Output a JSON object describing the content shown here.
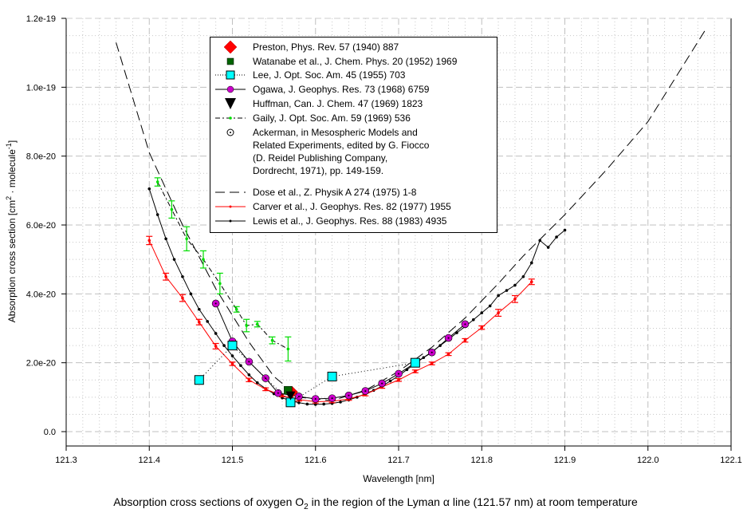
{
  "chart_data": {
    "type": "line",
    "caption": {
      "prefix": "Absorption cross sections of oxygen O",
      "subscript": "2",
      "middle": " in the region of the Lyman ",
      "greek": "α",
      "suffix": " line (121.57 nm) at room temperature"
    },
    "xlabel": "Wavelength [nm]",
    "ylabel": {
      "prefix": "Absorption cross section [cm",
      "sup1": "2",
      "middle": " · molecule",
      "sup2": "-1",
      "suffix": "]"
    },
    "xlim": [
      121.3,
      122.1
    ],
    "ylim": [
      -4e-21,
      1.2e-19
    ],
    "x_ticks": [
      "121.3",
      "121.4",
      "121.5",
      "121.6",
      "121.7",
      "121.8",
      "121.9",
      "122.0",
      "122.1"
    ],
    "y_ticks": [
      "0.0",
      "2.0e-20",
      "4.0e-20",
      "6.0e-20",
      "8.0e-20",
      "1.0e-19",
      "1.2e-19"
    ],
    "y_tick_values": [
      0,
      2e-20,
      4e-20,
      6e-20,
      8e-20,
      1e-19,
      1.2e-19
    ],
    "grid": true,
    "legend_placement": "top-center",
    "series": [
      {
        "name": "Preston, Phys. Rev. 57 (1940) 887",
        "style": "marker",
        "marker": "diamond",
        "color": "#ff0000",
        "x": [
          121.572
        ],
        "y": [
          1.15e-20
        ]
      },
      {
        "name": "Watanabe et al., J. Chem. Phys. 20 (1952) 1969",
        "style": "marker",
        "marker": "square",
        "color": "#006400",
        "x": [
          121.567
        ],
        "y": [
          1.2e-20
        ]
      },
      {
        "name": "Lee, J. Opt. Soc. Am. 45 (1955) 703",
        "style": "dotted",
        "marker": "square",
        "color": "#00ffff",
        "x": [
          121.46,
          121.5,
          121.57,
          121.62,
          121.72
        ],
        "y": [
          1.5e-20,
          2.5e-20,
          8.5e-21,
          1.6e-20,
          2e-20
        ]
      },
      {
        "name": "Ogawa, J. Geophys. Res. 73 (1968) 6759",
        "style": "solid",
        "marker": "circle",
        "color": "#cc00cc",
        "x": [
          121.48,
          121.5,
          121.52,
          121.54,
          121.555,
          121.58,
          121.6,
          121.62,
          121.64,
          121.66,
          121.68,
          121.7,
          121.72,
          121.74,
          121.76,
          121.78
        ],
        "y": [
          3.72e-20,
          2.62e-20,
          2.03e-20,
          1.55e-20,
          1.12e-20,
          1.02e-20,
          9.5e-21,
          9.7e-21,
          1.05e-20,
          1.18e-20,
          1.4e-20,
          1.68e-20,
          2e-20,
          2.3e-20,
          2.72e-20,
          3.12e-20
        ]
      },
      {
        "name": "Huffman, Can. J. Chem. 47 (1969) 1823",
        "style": "marker",
        "marker": "triangle-down",
        "color": "#000000",
        "x": [
          121.57
        ],
        "y": [
          1.05e-20
        ]
      },
      {
        "name": "Gaily, J. Opt. Soc. Am. 59 (1969) 536",
        "style": "dash-dot",
        "marker": "dot-errorbar",
        "color": "#00dd00",
        "x": [
          121.41,
          121.427,
          121.445,
          121.465,
          121.485,
          121.505,
          121.517,
          121.53,
          121.548,
          121.567
        ],
        "y": [
          7.25e-20,
          6.45e-20,
          5.6e-20,
          5e-20,
          4.3e-20,
          3.55e-20,
          3.08e-20,
          3.12e-20,
          2.65e-20,
          2.4e-20
        ],
        "err": [
          1.2e-21,
          2.5e-21,
          3.5e-21,
          2.5e-21,
          3e-21,
          8e-22,
          1.8e-21,
          8e-22,
          1e-21,
          3.5e-21
        ]
      },
      {
        "name": "Ackerman, in Mesospheric Models and Related Experiments, edited by G. Fiocco (D. Reidel Publishing Company, Dordrecht, 1971), pp. 149-159.",
        "name_lines": [
          "Ackerman, in Mesospheric Models and",
          "Related Experiments, edited by G. Fiocco",
          "(D. Reidel Publishing Company,",
          "Dordrecht, 1971), pp. 149-159."
        ],
        "style": "marker",
        "marker": "circle-dot",
        "color": "#000000",
        "x": [
          121.57
        ],
        "y": [
          1.1e-20
        ]
      },
      {
        "name": "Dose et al., Z. Physik A 274 (1975) 1-8",
        "style": "dashed",
        "marker": "none",
        "color": "#000000",
        "x": [
          121.36,
          121.4,
          121.44,
          121.48,
          121.52,
          121.55,
          121.58,
          121.62,
          121.66,
          121.7,
          121.74,
          121.78,
          121.82,
          121.85,
          121.9,
          121.95,
          122.0,
          122.07
        ],
        "y": [
          1.13e-19,
          8.1e-20,
          6e-20,
          4.15e-20,
          2.6e-20,
          1.6e-20,
          1e-20,
          9e-21,
          1.2e-20,
          1.75e-20,
          2.45e-20,
          3.3e-20,
          4.3e-20,
          5.1e-20,
          6.3e-20,
          7.6e-20,
          9e-20,
          1.17e-19
        ]
      },
      {
        "name": "Carver et al., J. Geophys. Res. 82 (1977) 1955",
        "style": "solid",
        "marker": "dot-errorbar",
        "color": "#ff0000",
        "x": [
          121.4,
          121.42,
          121.44,
          121.46,
          121.48,
          121.5,
          121.52,
          121.54,
          121.56,
          121.58,
          121.6,
          121.62,
          121.64,
          121.66,
          121.68,
          121.7,
          121.72,
          121.74,
          121.76,
          121.78,
          121.8,
          121.82,
          121.84,
          121.86
        ],
        "y": [
          5.55e-20,
          4.5e-20,
          3.88e-20,
          3.18e-20,
          2.48e-20,
          1.97e-20,
          1.5e-20,
          1.23e-20,
          1.05e-20,
          9.3e-21,
          8.7e-21,
          8.8e-21,
          9.5e-21,
          1.08e-20,
          1.3e-20,
          1.5e-20,
          1.75e-20,
          1.98e-20,
          2.25e-20,
          2.65e-20,
          3.02e-20,
          3.45e-20,
          3.85e-20,
          4.35e-20
        ],
        "err": [
          1.2e-21,
          1e-21,
          1e-21,
          8e-22,
          8e-22,
          5e-22,
          5e-22,
          4e-22,
          4e-22,
          4e-22,
          4e-22,
          4e-22,
          4e-22,
          4e-22,
          4e-22,
          4e-22,
          4e-22,
          4e-22,
          4e-22,
          5e-22,
          5e-22,
          1e-21,
          1e-21,
          8e-22
        ]
      },
      {
        "name": "Lewis et al., J. Geophys. Res. 88 (1983) 4935",
        "style": "solid",
        "marker": "small-dot",
        "color": "#000000",
        "x": [
          121.4,
          121.41,
          121.42,
          121.43,
          121.44,
          121.45,
          121.46,
          121.47,
          121.48,
          121.49,
          121.5,
          121.51,
          121.52,
          121.53,
          121.54,
          121.55,
          121.56,
          121.57,
          121.58,
          121.59,
          121.6,
          121.61,
          121.62,
          121.63,
          121.64,
          121.65,
          121.66,
          121.67,
          121.68,
          121.69,
          121.7,
          121.71,
          121.72,
          121.73,
          121.74,
          121.75,
          121.76,
          121.77,
          121.78,
          121.79,
          121.8,
          121.81,
          121.82,
          121.83,
          121.84,
          121.85,
          121.86,
          121.87,
          121.88,
          121.89,
          121.9
        ],
        "y": [
          7.05e-20,
          6.3e-20,
          5.6e-20,
          5e-20,
          4.5e-20,
          4e-20,
          3.55e-20,
          3.2e-20,
          2.85e-20,
          2.5e-20,
          2.2e-20,
          1.92e-20,
          1.65e-20,
          1.42e-20,
          1.25e-20,
          1.1e-20,
          9.8e-21,
          9e-21,
          8.4e-21,
          8e-21,
          7.9e-21,
          8e-21,
          8.2e-21,
          8.6e-21,
          9.2e-21,
          1e-20,
          1.1e-20,
          1.2e-20,
          1.32e-20,
          1.47e-20,
          1.62e-20,
          1.8e-20,
          1.98e-20,
          2.15e-20,
          2.32e-20,
          2.5e-20,
          2.68e-20,
          2.87e-20,
          3.05e-20,
          3.25e-20,
          3.45e-20,
          3.65e-20,
          3.95e-20,
          4.1e-20,
          4.25e-20,
          4.5e-20,
          4.9e-20,
          5.55e-20,
          5.35e-20,
          5.65e-20,
          5.85e-20
        ]
      }
    ]
  }
}
